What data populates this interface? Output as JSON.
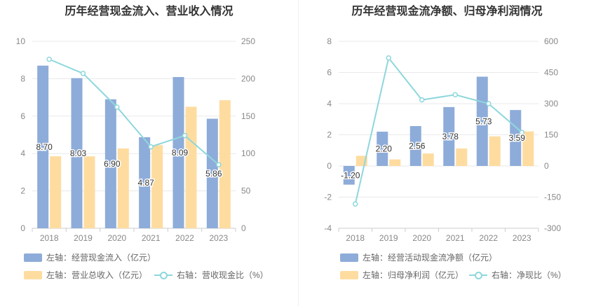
{
  "colors": {
    "bar_blue": "#8eacd9",
    "bar_orange": "#fedca0",
    "line_cyan": "#8ed7dc",
    "grid": "#e9e9e9",
    "axis_text": "#888888"
  },
  "chart_data": [
    {
      "type": "bar",
      "title": "历年经营现金流入、营业收入情况",
      "categories": [
        "2018",
        "2019",
        "2020",
        "2021",
        "2022",
        "2023"
      ],
      "left_axis": {
        "ylim": [
          0,
          10
        ],
        "ticks": [
          "0",
          "2",
          "4",
          "6",
          "8",
          "10"
        ]
      },
      "right_axis": {
        "ylim": [
          0,
          250
        ],
        "ticks": [
          "0",
          "50",
          "100",
          "150",
          "200",
          "250"
        ]
      },
      "series": [
        {
          "name": "左轴：经营现金流入（亿元）",
          "type": "bar",
          "axis": "left",
          "values": [
            8.7,
            8.03,
            6.9,
            4.87,
            8.09,
            5.86
          ],
          "labels": [
            "8.70",
            "8.03",
            "6.90",
            "4.87",
            "8.09",
            "5.86"
          ]
        },
        {
          "name": "左轴：营业总收入（亿元）",
          "type": "bar",
          "axis": "left",
          "values": [
            3.85,
            3.85,
            4.27,
            4.45,
            6.5,
            6.85
          ]
        },
        {
          "name": "右轴：营收现金比（%）",
          "type": "line",
          "axis": "right",
          "values": [
            226,
            207,
            162,
            109,
            124,
            85
          ]
        }
      ]
    },
    {
      "type": "bar",
      "title": "历年经营现金流净额、归母净利润情况",
      "categories": [
        "2018",
        "2019",
        "2020",
        "2021",
        "2022",
        "2023"
      ],
      "left_axis": {
        "ylim": [
          -4,
          8
        ],
        "ticks": [
          "-4",
          "-2",
          "0",
          "2",
          "4",
          "6",
          "8"
        ]
      },
      "right_axis": {
        "ylim": [
          -300,
          600
        ],
        "ticks": [
          "-300",
          "-150",
          "0",
          "150",
          "300",
          "450",
          "600"
        ]
      },
      "series": [
        {
          "name": "左轴：经营活动现金流净额（亿元）",
          "type": "bar",
          "axis": "left",
          "values": [
            -1.2,
            2.2,
            2.56,
            3.78,
            5.73,
            3.59
          ],
          "labels": [
            "-1.20",
            "2.20",
            "2.56",
            "3.78",
            "5.73",
            "3.59"
          ]
        },
        {
          "name": "左轴：归母净利润（亿元）",
          "type": "bar",
          "axis": "left",
          "values": [
            0.65,
            0.42,
            0.8,
            1.12,
            1.9,
            2.22
          ]
        },
        {
          "name": "右轴：净现比（%）",
          "type": "line",
          "axis": "right",
          "values": [
            -183,
            520,
            318,
            343,
            300,
            162
          ]
        }
      ]
    }
  ]
}
